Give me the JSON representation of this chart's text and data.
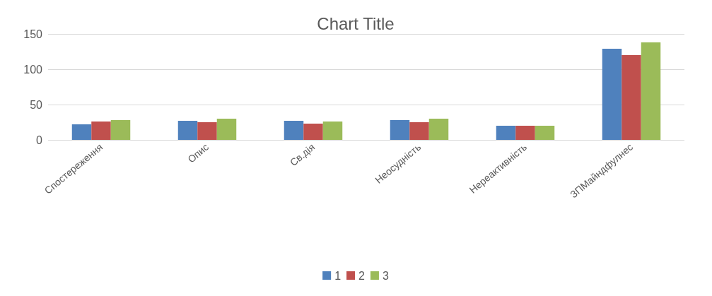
{
  "chart_data": {
    "type": "bar",
    "title": "Chart Title",
    "categories": [
      "Спостереження",
      "Опис",
      "Св.дія",
      "Неосудність",
      "Нереактивність",
      "ЗПМайндфулнес"
    ],
    "series": [
      {
        "name": "1",
        "color": "#4f81bd",
        "values": [
          22,
          27,
          27,
          28,
          20,
          129
        ]
      },
      {
        "name": "2",
        "color": "#c0504d",
        "values": [
          26,
          25,
          23,
          25,
          20,
          120
        ]
      },
      {
        "name": "3",
        "color": "#9bbb59",
        "values": [
          28,
          30,
          26,
          30,
          20,
          138
        ]
      }
    ],
    "ylim": [
      0,
      150
    ],
    "yticks": [
      0,
      50,
      100,
      150
    ],
    "grid": "y",
    "legend": "bottom"
  }
}
